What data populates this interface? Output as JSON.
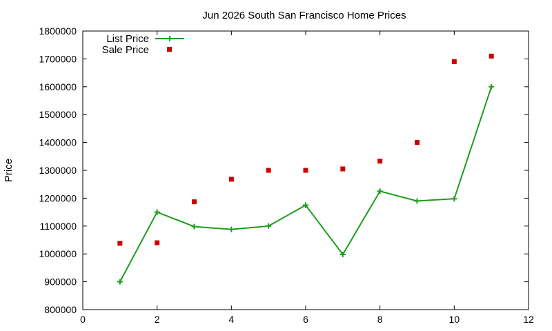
{
  "chart_data": {
    "type": "line",
    "title": "Jun 2026 South San Francisco Home Prices",
    "xlabel": "",
    "ylabel": "Price",
    "xlim": [
      0,
      12
    ],
    "ylim": [
      800000,
      1800000
    ],
    "xticks": [
      0,
      2,
      4,
      6,
      8,
      10,
      12
    ],
    "yticks": [
      800000,
      900000,
      1000000,
      1100000,
      1200000,
      1300000,
      1400000,
      1500000,
      1600000,
      1700000,
      1800000
    ],
    "grid": false,
    "legend_position": "top-left",
    "series": [
      {
        "name": "List Price",
        "style": "line+cross",
        "color": "#1a9e1a",
        "x": [
          1,
          2,
          3,
          4,
          5,
          6,
          7,
          8,
          9,
          10,
          11
        ],
        "y": [
          900000,
          1150000,
          1098000,
          1088000,
          1100000,
          1175000,
          998000,
          1225000,
          1190000,
          1198000,
          1600000
        ]
      },
      {
        "name": "Sale Price",
        "style": "square",
        "color": "#cc0000",
        "x": [
          1,
          2,
          3,
          4,
          5,
          6,
          7,
          8,
          9,
          10,
          11
        ],
        "y": [
          1038000,
          1040000,
          1187000,
          1268000,
          1300000,
          1300000,
          1305000,
          1333000,
          1400000,
          1690000,
          1710000
        ]
      }
    ]
  }
}
